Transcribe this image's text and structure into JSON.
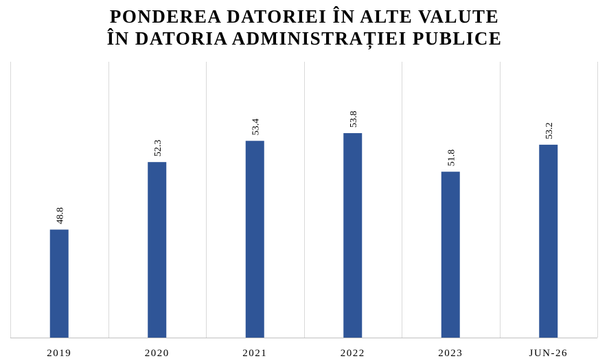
{
  "chart_data": {
    "type": "bar",
    "title_lines": [
      "PONDEREA DATORIEI ÎN ALTE VALUTE",
      "ÎN DATORIA ADMINISTRAȚIEI PUBLICE"
    ],
    "categories": [
      "2019",
      "2020",
      "2021",
      "2022",
      "2023",
      "JUN-26"
    ],
    "values": [
      48.8,
      52.3,
      53.4,
      53.8,
      51.8,
      53.2
    ],
    "data_labels": [
      "48.8",
      "52.3",
      "53.4",
      "53.8",
      "51.8",
      "53.2"
    ],
    "ylim": [
      43.2,
      57.5
    ],
    "grid": "vertical",
    "legend": "none",
    "bar_color": "#2F5597",
    "grid_color": "#D9D9D9",
    "axis_color": "#BFBFBF"
  }
}
